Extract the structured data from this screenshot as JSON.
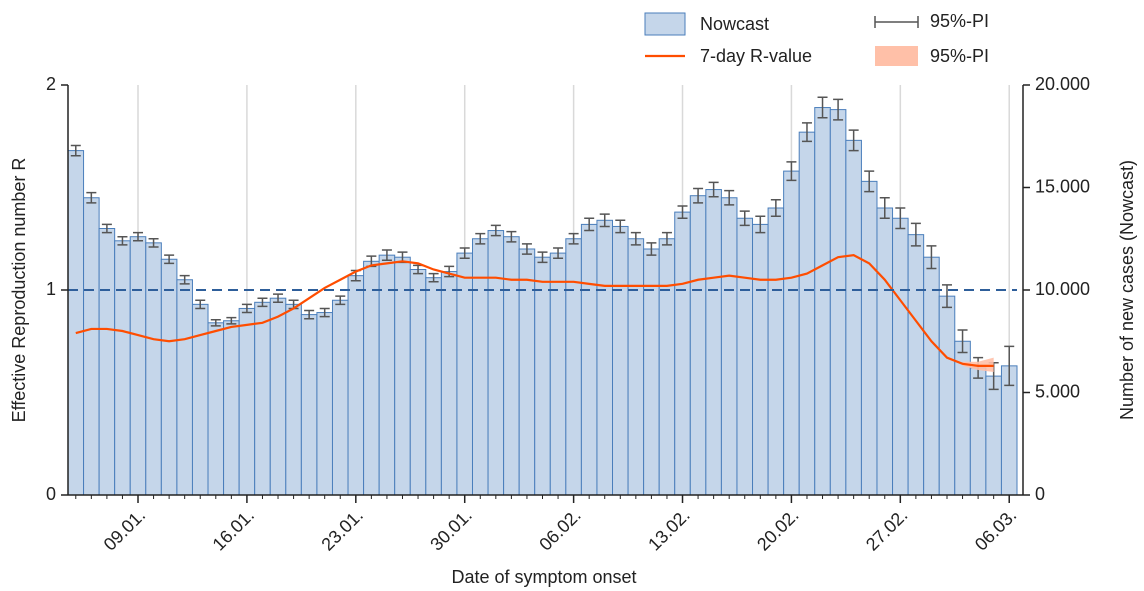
{
  "chart_data": {
    "type": "bar",
    "x_label": "Date of symptom onset",
    "y_label": "Effective Reproduction number R",
    "y2_label": "Number of new cases (Nowcast)",
    "categories": [
      null,
      null,
      null,
      null,
      "09.01.",
      null,
      null,
      null,
      null,
      null,
      null,
      "16.01.",
      null,
      null,
      null,
      null,
      null,
      null,
      "23.01.",
      null,
      null,
      null,
      null,
      null,
      null,
      "30.01.",
      null,
      null,
      null,
      null,
      null,
      null,
      "06.02.",
      null,
      null,
      null,
      null,
      null,
      null,
      "13.02.",
      null,
      null,
      null,
      null,
      null,
      null,
      "20.02.",
      null,
      null,
      null,
      null,
      null,
      null,
      "27.02.",
      null,
      null,
      null,
      null,
      null,
      null,
      "06.03."
    ],
    "ylim": [
      0,
      2
    ],
    "yticks": [
      0,
      1,
      2
    ],
    "y2lim": [
      0,
      20000
    ],
    "y2ticks": [
      0,
      {
        "value": 5000,
        "label": "5.000"
      },
      {
        "value": 10000,
        "label": "10.000"
      },
      {
        "value": 15000,
        "label": "15.000"
      },
      {
        "value": 20000,
        "label": "20.000"
      }
    ],
    "reference_line": 1,
    "xgrid": true,
    "series": [
      {
        "name": "Nowcast",
        "type": "bar",
        "axis": "y2",
        "color": "#c5d6ea",
        "edge_color": "#4a7ebb",
        "values": [
          16800,
          14500,
          13000,
          12400,
          12600,
          12300,
          11500,
          10500,
          9300,
          8400,
          8500,
          9100,
          9400,
          9600,
          9300,
          8800,
          8900,
          9500,
          10700,
          11400,
          11700,
          11600,
          11000,
          10600,
          10900,
          11800,
          12500,
          12900,
          12600,
          12000,
          11600,
          11800,
          12500,
          13200,
          13400,
          13100,
          12500,
          12000,
          12500,
          13800,
          14600,
          14900,
          14500,
          13500,
          13200,
          14000,
          15800,
          17700,
          18900,
          18800,
          17300,
          15300,
          14000,
          13500,
          12700,
          11600,
          9700,
          7500,
          6200,
          5800,
          6300
        ],
        "error_name": "95%-PI",
        "error_color": "#555555",
        "errors": [
          250,
          250,
          200,
          200,
          200,
          200,
          200,
          200,
          200,
          150,
          150,
          200,
          200,
          200,
          200,
          200,
          200,
          200,
          250,
          250,
          250,
          250,
          200,
          200,
          250,
          250,
          250,
          250,
          250,
          250,
          250,
          250,
          250,
          300,
          300,
          300,
          300,
          300,
          300,
          300,
          350,
          350,
          350,
          350,
          400,
          400,
          450,
          450,
          500,
          500,
          500,
          500,
          500,
          500,
          550,
          550,
          550,
          550,
          500,
          650,
          950
        ]
      },
      {
        "name": "7-day R-value",
        "type": "line",
        "color": "#ff4d00",
        "values": [
          0.79,
          0.81,
          0.81,
          0.8,
          0.78,
          0.76,
          0.75,
          0.76,
          0.78,
          0.8,
          0.82,
          0.83,
          0.84,
          0.87,
          0.91,
          0.96,
          1.01,
          1.05,
          1.09,
          1.12,
          1.13,
          1.14,
          1.13,
          1.1,
          1.08,
          1.06,
          1.06,
          1.06,
          1.05,
          1.05,
          1.04,
          1.04,
          1.04,
          1.03,
          1.02,
          1.02,
          1.02,
          1.02,
          1.02,
          1.03,
          1.05,
          1.06,
          1.07,
          1.06,
          1.05,
          1.05,
          1.06,
          1.08,
          1.12,
          1.16,
          1.17,
          1.13,
          1.05,
          0.95,
          0.85,
          0.75,
          0.67,
          0.64,
          0.63,
          0.63,
          null
        ]
      },
      {
        "name": "95%-PI",
        "type": "band",
        "color": "#ffc0a8",
        "lower": [
          null,
          null,
          null,
          null,
          null,
          null,
          null,
          null,
          null,
          null,
          null,
          null,
          null,
          null,
          null,
          null,
          null,
          null,
          null,
          null,
          null,
          null,
          null,
          null,
          null,
          null,
          null,
          null,
          null,
          null,
          null,
          null,
          null,
          null,
          null,
          null,
          null,
          null,
          null,
          null,
          null,
          null,
          null,
          null,
          null,
          null,
          null,
          null,
          null,
          null,
          null,
          null,
          null,
          null,
          null,
          null,
          null,
          0.63,
          0.61,
          0.6,
          null
        ],
        "upper": [
          null,
          null,
          null,
          null,
          null,
          null,
          null,
          null,
          null,
          null,
          null,
          null,
          null,
          null,
          null,
          null,
          null,
          null,
          null,
          null,
          null,
          null,
          null,
          null,
          null,
          null,
          null,
          null,
          null,
          null,
          null,
          null,
          null,
          null,
          null,
          null,
          null,
          null,
          null,
          null,
          null,
          null,
          null,
          null,
          null,
          null,
          null,
          null,
          null,
          null,
          null,
          null,
          null,
          null,
          null,
          null,
          null,
          0.65,
          0.65,
          0.67,
          null
        ]
      }
    ]
  }
}
